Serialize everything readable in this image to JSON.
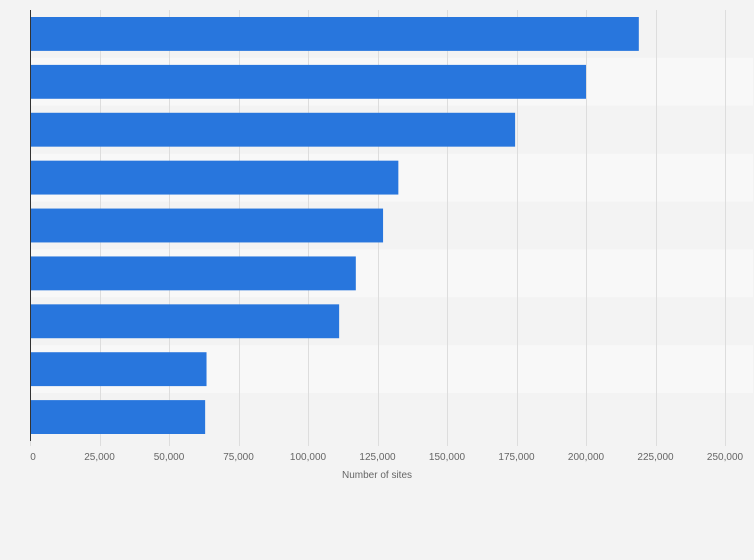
{
  "chart_data": {
    "type": "bar",
    "orientation": "horizontal",
    "categories": [
      "",
      "",
      "",
      "",
      "",
      "",
      "",
      "",
      ""
    ],
    "values": [
      219000,
      200000,
      174500,
      132500,
      127000,
      117200,
      111200,
      63500,
      63000
    ],
    "xlabel": "Number of sites",
    "ylabel": "",
    "xlim": [
      0,
      250000
    ],
    "xticks": [
      0,
      25000,
      50000,
      75000,
      100000,
      125000,
      150000,
      175000,
      200000,
      225000,
      250000
    ],
    "xtick_labels": [
      "0",
      "25,000",
      "50,000",
      "75,000",
      "100,000",
      "125,000",
      "150,000",
      "175,000",
      "200,000",
      "225,000",
      "250,000"
    ],
    "grid": true,
    "legend": "none",
    "colors": {
      "bar": "#2876dd",
      "band_dark": "#f3f3f3",
      "band_light": "#f8f8f8",
      "grid": "#dddddd",
      "axis": "#333333",
      "text": "#666666"
    }
  }
}
